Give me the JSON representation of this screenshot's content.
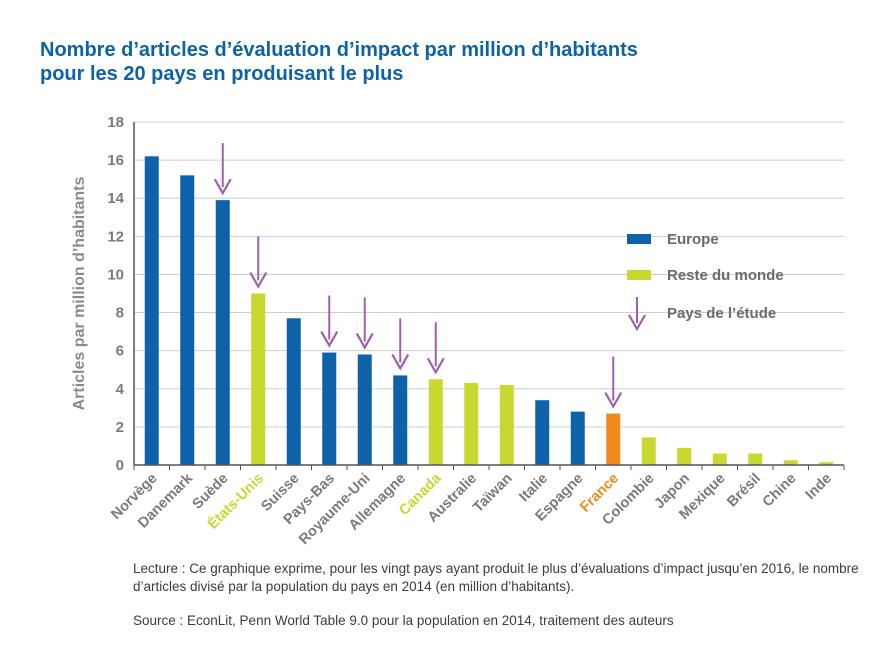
{
  "title": {
    "line1": "Nombre d’articles d’évaluation d’impact par million d’habitants",
    "line2": "pour les 20 pays en produisant le plus"
  },
  "colors": {
    "europe": "#0d62aa",
    "rest": "#c8d82e",
    "france": "#f08a1d",
    "arrow": "#a05fae",
    "title": "#0d63a8",
    "axis_label": "#8a8a8a",
    "category_default": "#7a7a7a"
  },
  "chart_data": {
    "type": "bar",
    "ylabel": "Articles par million d’habitants",
    "xlabel": "",
    "ylim": [
      0,
      18
    ],
    "yticks": [
      0,
      2,
      4,
      6,
      8,
      10,
      12,
      14,
      16,
      18
    ],
    "grid": true,
    "categories": [
      "Norvège",
      "Danemark",
      "Suède",
      "États-Unis",
      "Suisse",
      "Pays-Bas",
      "Royaume-Uni",
      "Allemagne",
      "Canada",
      "Australie",
      "Taïwan",
      "Italie",
      "Espagne",
      "France",
      "Colombie",
      "Japon",
      "Mexique",
      "Brésil",
      "Chine",
      "Inde"
    ],
    "values": [
      16.2,
      15.2,
      13.9,
      9.0,
      7.7,
      5.9,
      5.8,
      4.7,
      4.5,
      4.3,
      4.2,
      3.4,
      2.8,
      2.7,
      1.45,
      0.9,
      0.6,
      0.6,
      0.25,
      0.15
    ],
    "groups": [
      "europe",
      "europe",
      "europe",
      "rest",
      "europe",
      "europe",
      "europe",
      "europe",
      "rest",
      "rest",
      "rest",
      "europe",
      "europe",
      "france",
      "rest",
      "rest",
      "rest",
      "rest",
      "rest",
      "rest"
    ],
    "study_countries": [
      "Suède",
      "États-Unis",
      "Pays-Bas",
      "Royaume-Uni",
      "Allemagne",
      "Canada",
      "France"
    ],
    "legend": {
      "position": "right",
      "entries": [
        {
          "label": "Europe",
          "kind": "europe"
        },
        {
          "label": "Reste du monde",
          "kind": "rest"
        },
        {
          "label": "Pays de l’étude",
          "kind": "arrow"
        }
      ]
    }
  },
  "notes": {
    "lecture": "Lecture : Ce graphique exprime, pour les vingt pays ayant produit le plus d’évaluations d’impact jusqu’en 2016, le nombre d’articles divisé par la population du pays en 2014 (en million d’habitants).",
    "source": "Source : EconLit, Penn World Table 9.0 pour la population en 2014, traitement des auteurs"
  }
}
